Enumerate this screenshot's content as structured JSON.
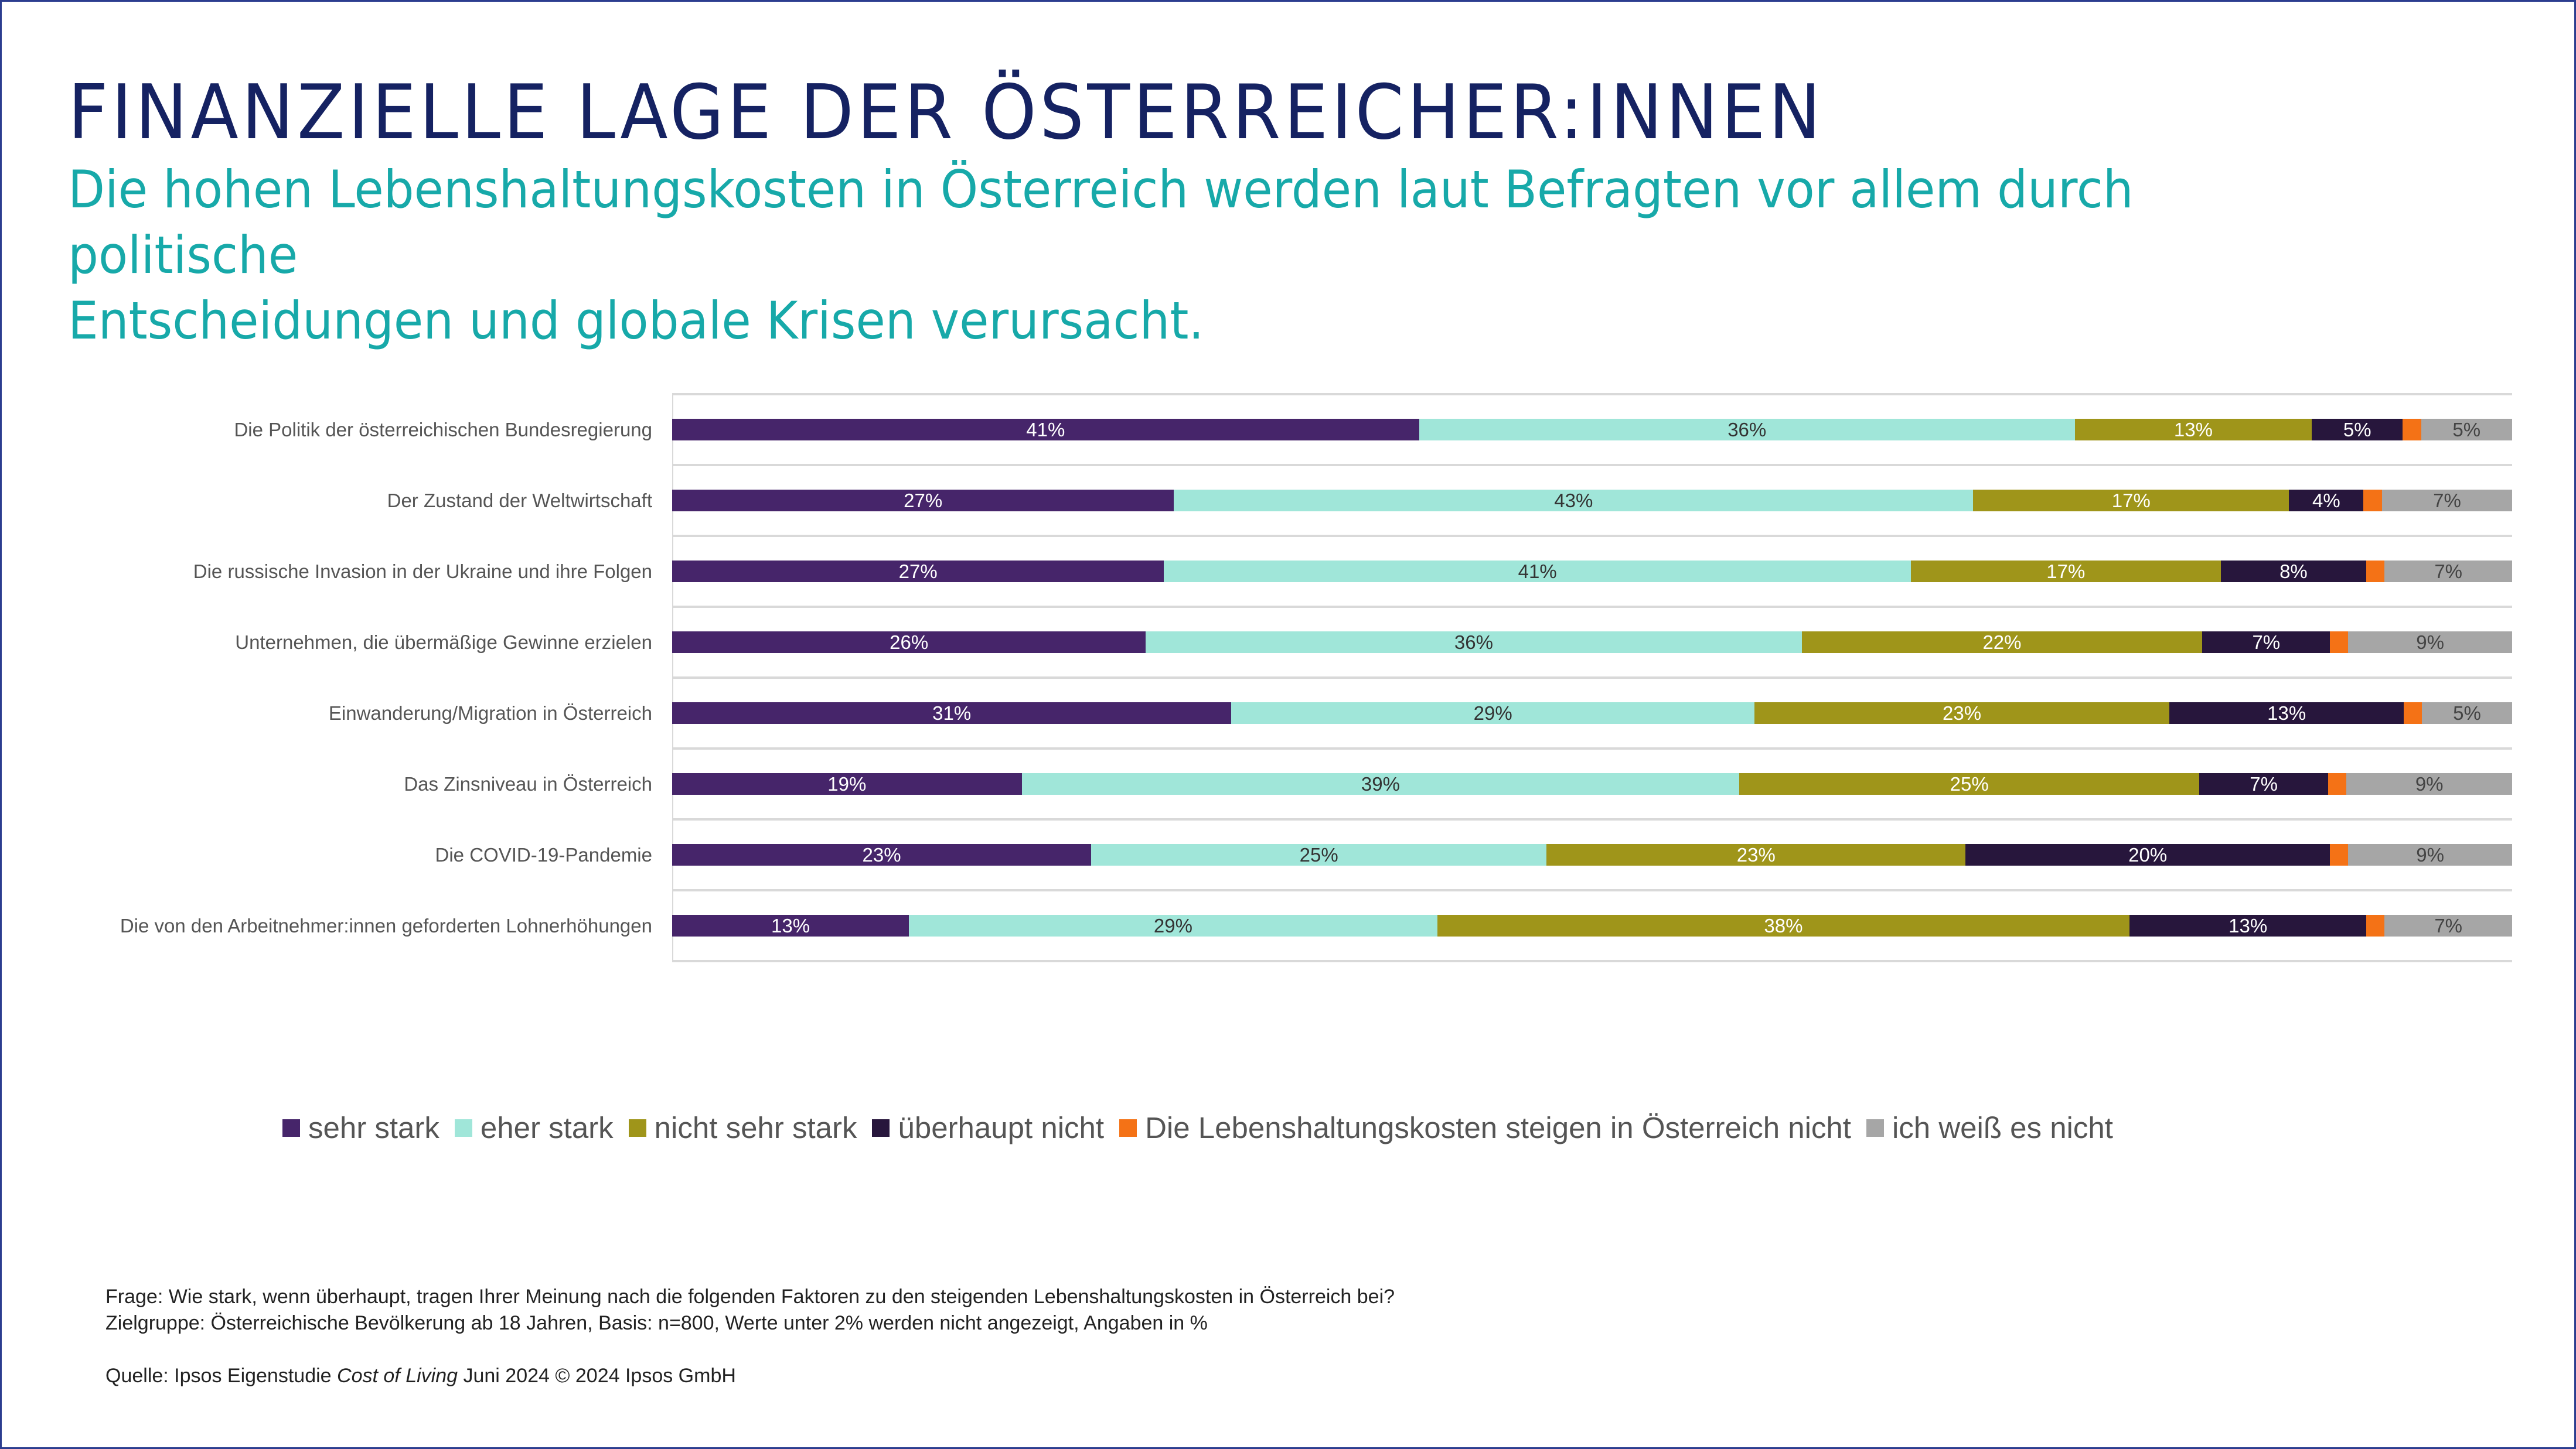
{
  "header": {
    "title": "FINANZIELLE LAGE DER ÖSTERREICHER:INNEN",
    "subtitle_line1": "Die hohen Lebenshaltungskosten in Österreich werden laut Befragten vor allem durch politische",
    "subtitle_line2": "Entscheidungen und globale Krisen verursacht."
  },
  "chart_data": {
    "type": "bar",
    "orientation": "horizontal",
    "stacked": true,
    "unit": "%",
    "grid": true,
    "legend_position": "bottom",
    "categories": [
      "Die Politik der österreichischen Bundesregierung",
      "Der Zustand der Weltwirtschaft",
      "Die russische Invasion in der Ukraine und ihre Folgen",
      "Unternehmen, die übermäßige Gewinne erzielen",
      "Einwanderung/Migration in Österreich",
      "Das Zinsniveau in Österreich",
      "Die COVID-19-Pandemie",
      "Die von den Arbeitnehmer:innen geforderten Lohnerhöhungen"
    ],
    "series": [
      {
        "name": "sehr stark",
        "color": "#46256a",
        "label_color": "#ffffff",
        "values": [
          41,
          27,
          27,
          26,
          31,
          19,
          23,
          13
        ]
      },
      {
        "name": "eher stark",
        "color": "#a0e6d9",
        "label_color": "#333333",
        "values": [
          36,
          43,
          41,
          36,
          29,
          39,
          25,
          29
        ]
      },
      {
        "name": "nicht sehr stark",
        "color": "#9f951a",
        "label_color": "#ffffff",
        "values": [
          13,
          17,
          17,
          22,
          23,
          25,
          23,
          38
        ]
      },
      {
        "name": "überhaupt nicht",
        "color": "#27163c",
        "label_color": "#ffffff",
        "values": [
          5,
          4,
          8,
          7,
          13,
          7,
          20,
          13
        ]
      },
      {
        "name": "Die Lebenshaltungskosten steigen in Österreich nicht",
        "color": "#f47216",
        "label_color": "#333333",
        "values": [
          1,
          1,
          1,
          1,
          1,
          1,
          1,
          1
        ],
        "labels_hidden": true
      },
      {
        "name": "ich weiß es nicht",
        "color": "#a6a6a6",
        "label_color": "#444444",
        "values": [
          5,
          7,
          7,
          9,
          5,
          9,
          9,
          7
        ]
      }
    ]
  },
  "footer": {
    "question": "Frage: Wie stark, wenn überhaupt, tragen Ihrer Meinung nach die folgenden Faktoren zu den steigenden Lebenshaltungskosten in Österreich bei?",
    "target": "Zielgruppe: Österreichische Bevölkerung ab 18 Jahren, Basis: n=800, Werte unter 2% werden nicht angezeigt, Angaben in %",
    "source_prefix": "Quelle: Ipsos Eigenstudie ",
    "source_study": "Cost of Living",
    "source_suffix": " Juni 2024 © 2024 Ipsos GmbH"
  }
}
